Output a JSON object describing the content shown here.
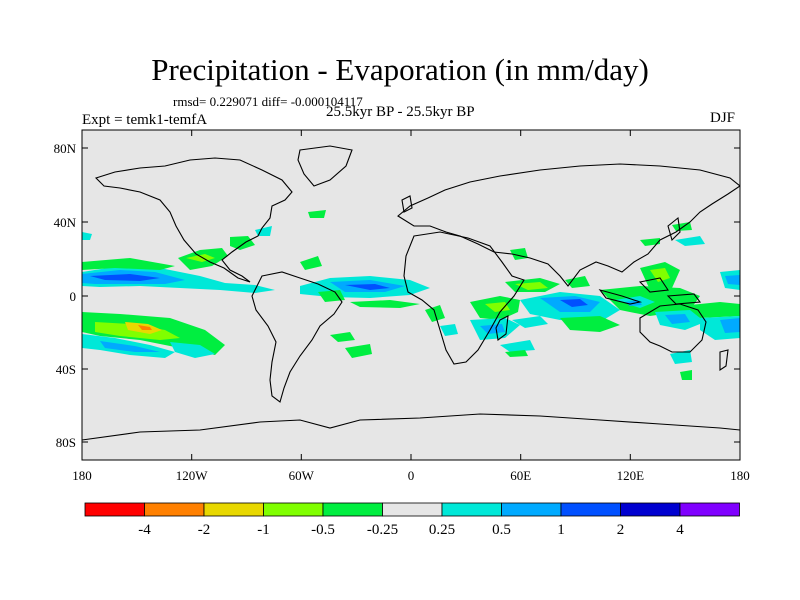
{
  "title": "Precipitation - Evaporation (in mm/day)",
  "stats": "rmsd= 0.229071 diff= -0.000104117",
  "experiment": "Expt = temk1-temfA",
  "period": "25.5kyr BP - 25.5kyr BP",
  "season": "DJF",
  "lat_ticks": [
    "80N",
    "40N",
    "0",
    "40S",
    "80S"
  ],
  "lon_ticks": [
    "180",
    "120W",
    "60W",
    "0",
    "60E",
    "120E",
    "180"
  ],
  "colorbar": {
    "colors": [
      "#ff0000",
      "#ff8000",
      "#e8d800",
      "#80ff00",
      "#00ee40",
      "#e6e6e6",
      "#00e8d8",
      "#00aaff",
      "#0050ff",
      "#0000d0",
      "#8000ff"
    ],
    "labels": [
      "-4",
      "-2",
      "-1",
      "-0.5",
      "-0.25",
      "0.25",
      "0.5",
      "1",
      "2",
      "4"
    ]
  }
}
